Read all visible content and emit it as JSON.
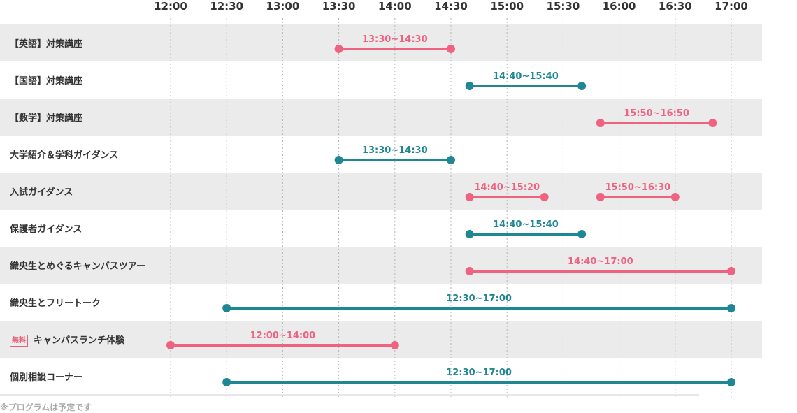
{
  "chart_data": {
    "type": "gantt",
    "x_ticks": [
      "12:00",
      "12:30",
      "13:00",
      "13:30",
      "14:00",
      "14:30",
      "15:00",
      "15:30",
      "16:00",
      "16:30",
      "17:00"
    ],
    "xlim": [
      "12:00",
      "17:00"
    ],
    "grid": true,
    "colors": {
      "pink": "#ef6280",
      "teal": "#1f8793",
      "row_shade": "#ebebeb"
    },
    "rows": [
      {
        "label": "【英語】対策講座",
        "badge": "",
        "color": "pink",
        "bars": [
          {
            "start": "13:30",
            "end": "14:30",
            "text": "13:30~14:30"
          }
        ]
      },
      {
        "label": "【国語】対策講座",
        "badge": "",
        "color": "teal",
        "bars": [
          {
            "start": "14:40",
            "end": "15:40",
            "text": "14:40~15:40"
          }
        ]
      },
      {
        "label": "【数学】対策講座",
        "badge": "",
        "color": "pink",
        "bars": [
          {
            "start": "15:50",
            "end": "16:50",
            "text": "15:50~16:50"
          }
        ]
      },
      {
        "label": "大学紹介＆学科ガイダンス",
        "badge": "",
        "color": "teal",
        "bars": [
          {
            "start": "13:30",
            "end": "14:30",
            "text": "13:30~14:30"
          }
        ]
      },
      {
        "label": "入試ガイダンス",
        "badge": "",
        "color": "pink",
        "bars": [
          {
            "start": "14:40",
            "end": "15:20",
            "text": "14:40~15:20"
          },
          {
            "start": "15:50",
            "end": "16:30",
            "text": "15:50~16:30"
          }
        ]
      },
      {
        "label": "保護者ガイダンス",
        "badge": "",
        "color": "teal",
        "bars": [
          {
            "start": "14:40",
            "end": "15:40",
            "text": "14:40~15:40"
          }
        ]
      },
      {
        "label": "織央生とめぐるキャンパスツアー",
        "badge": "",
        "color": "pink",
        "bars": [
          {
            "start": "14:40",
            "end": "17:00",
            "text": "14:40~17:00"
          }
        ]
      },
      {
        "label": "織央生とフリートーク",
        "badge": "",
        "color": "teal",
        "bars": [
          {
            "start": "12:30",
            "end": "17:00",
            "text": "12:30~17:00"
          }
        ]
      },
      {
        "label": "キャンパスランチ体験",
        "badge": "無料",
        "color": "pink",
        "bars": [
          {
            "start": "12:00",
            "end": "14:00",
            "text": "12:00~14:00"
          }
        ]
      },
      {
        "label": "個別相談コーナー",
        "badge": "",
        "color": "teal",
        "bars": [
          {
            "start": "12:30",
            "end": "17:00",
            "text": "12:30~17:00"
          }
        ]
      }
    ]
  },
  "footnote": "※プログラムは予定です"
}
